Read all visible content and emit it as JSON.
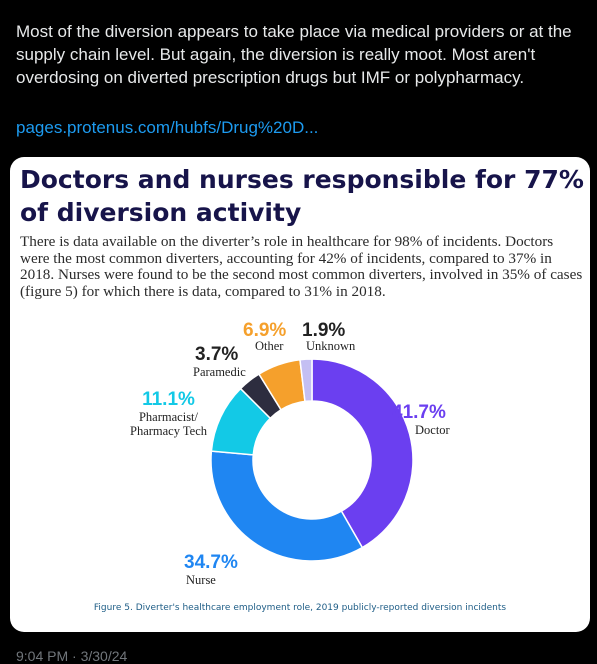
{
  "tweet": {
    "text": "Most of the diversion appears to take place via medical providers or at the supply chain level. But again, the diversion is really moot. Most aren't overdosing on diverted prescription drugs but IMF or polypharmacy.",
    "link": "pages.protenus.com/hubfs/Drug%20D...",
    "timestamp": "9:04 PM · 3/30/24"
  },
  "card": {
    "title": "Doctors and nurses responsible for 77% of diversion activity",
    "body": "There is data available on the diverter’s role in healthcare for 98% of incidents. Doctors were the most common diverters, accounting for 42% of incidents, compared to 37% in 2018. Nurses were found to be the second most common diverters, involved in 35% of cases (figure 5) for which there is data, compared to 31% in 2018.",
    "caption": "Figure 5. Diverter's healthcare employment role, 2019 publicly-reported diversion incidents"
  },
  "chart_data": {
    "type": "pie",
    "variant": "donut",
    "slices": [
      {
        "label": "Doctor",
        "pct_label": "41.7%",
        "value": 41.7,
        "color": "#6b3ff0"
      },
      {
        "label": "Nurse",
        "pct_label": "34.7%",
        "value": 34.7,
        "color": "#1f86f2"
      },
      {
        "label": "Pharmacist/ Pharmacy Tech",
        "label_line1": "Pharmacist/",
        "label_line2": "Pharmacy Tech",
        "pct_label": "11.1%",
        "value": 11.1,
        "color": "#13c9e6"
      },
      {
        "label": "Paramedic",
        "pct_label": "3.7%",
        "value": 3.7,
        "color": "#2d2d3f"
      },
      {
        "label": "Other",
        "pct_label": "6.9%",
        "value": 6.9,
        "color": "#f5a02c"
      },
      {
        "label": "Unknown",
        "pct_label": "1.9%",
        "value": 1.9,
        "color": "#c4bff3"
      }
    ],
    "pct_colors": {
      "Doctor": "#6b3ff0",
      "Nurse": "#1f86f2",
      "Pharmacist/ Pharmacy Tech": "#13c9e6",
      "Paramedic": "#222222",
      "Other": "#f5a02c",
      "Unknown": "#222222"
    },
    "title": "",
    "legend": "none"
  }
}
